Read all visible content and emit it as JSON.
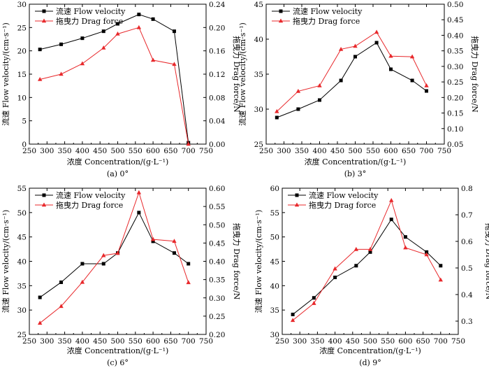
{
  "chart_data": [
    {
      "type": "line",
      "caption": "(a) 0°",
      "xlabel": "浓度 Concentration/(g·L⁻¹)",
      "ylabel_left": "流速 Flow velocity/(cm·s⁻¹)",
      "ylabel_right": "拖曳力 Drag force/N",
      "xlim": [
        250,
        750
      ],
      "xticks": [
        250,
        300,
        350,
        400,
        450,
        500,
        550,
        600,
        650,
        700,
        750
      ],
      "ylim_left": [
        0,
        30
      ],
      "yticks_left": [
        0,
        5,
        10,
        15,
        20,
        25,
        30
      ],
      "ylim_right": [
        0,
        0.24
      ],
      "yticks_right": [
        "0.00",
        "0.04",
        "0.08",
        "0.12",
        "0.16",
        "0.20",
        "0.24"
      ],
      "x": [
        280,
        340,
        400,
        460,
        500,
        560,
        600,
        660,
        700
      ],
      "series": [
        {
          "name": "流速 Flow velocity",
          "axis": "left",
          "color": "#000000",
          "marker": "square",
          "values": [
            20.3,
            21.4,
            22.7,
            24.2,
            25.8,
            27.8,
            26.8,
            24.2,
            0.3
          ]
        },
        {
          "name": "拖曳力 Drag force",
          "axis": "right",
          "color": "#e8282b",
          "marker": "triangle",
          "values": [
            0.111,
            0.12,
            0.138,
            0.165,
            0.189,
            0.2,
            0.144,
            0.137,
            0.0
          ]
        }
      ]
    },
    {
      "type": "line",
      "caption": "(b) 3°",
      "xlabel": "浓度 Concentration/(g·L⁻¹)",
      "ylabel_left": "流速 Flow velocity/(cm·s⁻¹)",
      "ylabel_right": "拖曳力 Drag force/N",
      "xlim": [
        250,
        750
      ],
      "xticks": [
        250,
        300,
        350,
        400,
        450,
        500,
        550,
        600,
        650,
        700,
        750
      ],
      "ylim_left": [
        25,
        45
      ],
      "yticks_left": [
        25,
        30,
        35,
        40,
        45
      ],
      "ylim_right": [
        0.05,
        0.5
      ],
      "yticks_right": [
        "0.05",
        "0.10",
        "0.15",
        "0.20",
        "0.25",
        "0.30",
        "0.35",
        "0.40",
        "0.45",
        "0.50"
      ],
      "x": [
        280,
        340,
        400,
        460,
        500,
        560,
        600,
        660,
        700
      ],
      "series": [
        {
          "name": "流速 Flow velocity",
          "axis": "left",
          "color": "#000000",
          "marker": "square",
          "values": [
            28.8,
            30.0,
            31.3,
            34.1,
            37.5,
            39.5,
            35.7,
            34.1,
            32.6
          ]
        },
        {
          "name": "拖曳力 Drag force",
          "axis": "right",
          "color": "#e8282b",
          "marker": "triangle",
          "values": [
            0.155,
            0.22,
            0.238,
            0.355,
            0.365,
            0.41,
            0.333,
            0.331,
            0.238
          ]
        }
      ]
    },
    {
      "type": "line",
      "caption": "(c) 6°",
      "xlabel": "浓度 Concentration/(g·L⁻¹)",
      "ylabel_left": "流速 Flow velocity/(cm·s⁻¹)",
      "ylabel_right": "拖曳力 Drag force/N",
      "xlim": [
        250,
        750
      ],
      "xticks": [
        250,
        300,
        350,
        400,
        450,
        500,
        550,
        600,
        650,
        700,
        750
      ],
      "ylim_left": [
        25,
        55
      ],
      "yticks_left": [
        25,
        30,
        35,
        40,
        45,
        50,
        55
      ],
      "ylim_right": [
        0.2,
        0.6
      ],
      "yticks_right": [
        "0.20",
        "0.25",
        "0.30",
        "0.35",
        "0.40",
        "0.45",
        "0.50",
        "0.55",
        "0.60"
      ],
      "x": [
        280,
        340,
        400,
        460,
        500,
        560,
        600,
        660,
        700
      ],
      "series": [
        {
          "name": "流速 Flow velocity",
          "axis": "left",
          "color": "#000000",
          "marker": "square",
          "values": [
            32.6,
            35.7,
            39.5,
            39.5,
            41.7,
            50.0,
            44.1,
            41.7,
            39.5
          ]
        },
        {
          "name": "拖曳力 Drag force",
          "axis": "right",
          "color": "#e8282b",
          "marker": "triangle",
          "values": [
            0.231,
            0.277,
            0.343,
            0.416,
            0.422,
            0.588,
            0.46,
            0.455,
            0.342
          ]
        }
      ]
    },
    {
      "type": "line",
      "caption": "(d) 9°",
      "xlabel": "浓度 Concentration/(g·L⁻¹)",
      "ylabel_left": "流速 Flow velocity/(cm·s⁻¹)",
      "ylabel_right": "拖曳力 Drag force/N",
      "xlim": [
        250,
        750
      ],
      "xticks": [
        250,
        300,
        350,
        400,
        450,
        500,
        550,
        600,
        650,
        700,
        750
      ],
      "ylim_left": [
        30,
        60
      ],
      "yticks_left": [
        30,
        35,
        40,
        45,
        50,
        55,
        60
      ],
      "ylim_right": [
        0.25,
        0.8
      ],
      "yticks_right": [
        "0.3",
        "0.4",
        "0.5",
        "0.6",
        "0.7",
        "0.8"
      ],
      "x": [
        280,
        340,
        400,
        460,
        500,
        560,
        600,
        660,
        700
      ],
      "series": [
        {
          "name": "流速 Flow velocity",
          "axis": "left",
          "color": "#000000",
          "marker": "square",
          "values": [
            34.1,
            37.5,
            41.7,
            44.1,
            46.9,
            53.6,
            50.0,
            46.9,
            44.1
          ]
        },
        {
          "name": "拖曳力 Drag force",
          "axis": "right",
          "color": "#e8282b",
          "marker": "triangle",
          "values": [
            0.303,
            0.367,
            0.497,
            0.57,
            0.57,
            0.754,
            0.576,
            0.55,
            0.455
          ]
        }
      ]
    }
  ]
}
